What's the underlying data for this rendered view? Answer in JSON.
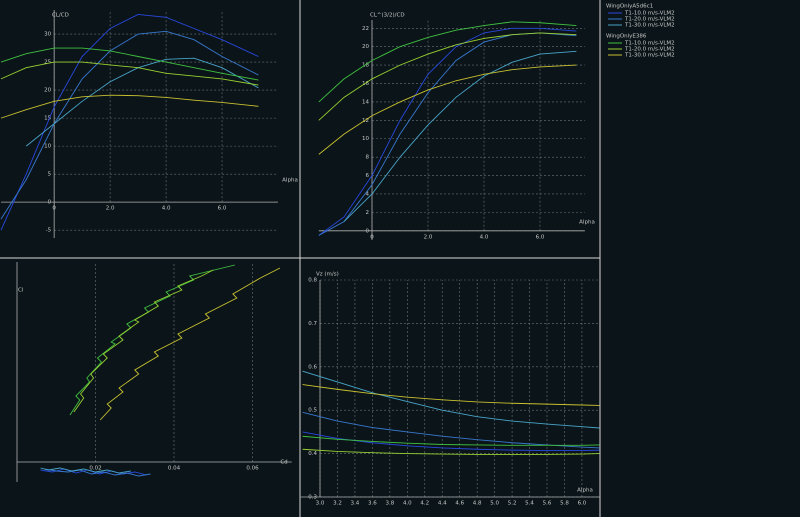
{
  "legend": {
    "groups": [
      {
        "title": "WingOnlyA5d6c1",
        "entries": [
          {
            "name": "T1-10.0 m/s-VLM2",
            "color": "#2848e0"
          },
          {
            "name": "T1-20.0 m/s-VLM2",
            "color": "#3878d0"
          },
          {
            "name": "T1-30.0 m/s-VLM2",
            "color": "#48a4c8"
          }
        ]
      },
      {
        "title": "WingOnlyE386",
        "entries": [
          {
            "name": "T1-10.0 m/s-VLM2",
            "color": "#40c040"
          },
          {
            "name": "T1-20.0 m/s-VLM2",
            "color": "#98d030"
          },
          {
            "name": "T1-30.0 m/s-VLM2",
            "color": "#c8c030"
          }
        ]
      }
    ]
  },
  "chart_data": [
    {
      "type": "line",
      "y_label": "CL/CD",
      "x_label": "Alpha",
      "x": [
        -1.9,
        -1,
        0,
        1,
        2,
        3,
        4,
        5,
        6,
        7.3
      ],
      "series": [
        {
          "values": [
            -5,
            5,
            17,
            26,
            31,
            33.5,
            33,
            31,
            29,
            26
          ]
        },
        {
          "values": [
            -3,
            4,
            14,
            22,
            27,
            30,
            30.5,
            29,
            26,
            22.7
          ]
        },
        {
          "values": [
            null,
            10,
            14,
            18,
            21.5,
            24,
            25.5,
            25.7,
            24,
            20.4
          ]
        },
        {
          "values": [
            25,
            26.5,
            27.5,
            27.5,
            27,
            26,
            25,
            24,
            23,
            21.8
          ]
        },
        {
          "values": [
            22,
            24,
            25,
            25,
            24.5,
            24,
            23,
            22.5,
            22,
            20.9
          ]
        },
        {
          "values": [
            15,
            16.5,
            18,
            18.8,
            19.1,
            19,
            18.7,
            18.2,
            17.8,
            17.1
          ]
        }
      ],
      "xlim": [
        -1.9,
        8
      ],
      "ylim": [
        -6.4,
        34.3
      ],
      "xticks": [
        0,
        {
          "value": 2,
          "label": "2.0"
        },
        {
          "value": 4,
          "label": "4.0"
        },
        {
          "value": 6,
          "label": "6.0"
        }
      ],
      "yticks": [
        -5,
        0,
        5,
        10,
        15,
        20,
        25,
        30
      ],
      "grid": true
    },
    {
      "type": "line",
      "y_label": "CL^(3/2)/CD",
      "x_label": "Alpha",
      "x": [
        -1.9,
        -1,
        0,
        1,
        2,
        3,
        4,
        5,
        6,
        7.3
      ],
      "series": [
        {
          "values": [
            -0.5,
            1.5,
            6,
            12,
            17,
            20,
            21.5,
            22,
            22,
            21.7
          ]
        },
        {
          "values": [
            -0.5,
            1,
            5,
            10.5,
            15,
            18.5,
            20.5,
            21.3,
            21.5,
            21.2
          ]
        },
        {
          "values": [
            null,
            1,
            4,
            8,
            11.5,
            14.5,
            16.8,
            18.3,
            19.2,
            19.5
          ]
        },
        {
          "values": [
            14,
            16.5,
            18.5,
            20,
            21,
            21.8,
            22.3,
            22.7,
            22.6,
            22.3
          ]
        },
        {
          "values": [
            12,
            14.5,
            16.5,
            18,
            19.2,
            20.2,
            20.9,
            21.3,
            21.5,
            21.3
          ]
        },
        {
          "values": [
            8.3,
            10.5,
            12.5,
            14,
            15.3,
            16.3,
            17,
            17.5,
            17.8,
            18
          ]
        }
      ],
      "xlim": [
        -1.9,
        7.6
      ],
      "ylim": [
        -1,
        22.9
      ],
      "xticks": [
        0,
        {
          "value": 2,
          "label": "2.0"
        },
        {
          "value": 4,
          "label": "4.0"
        },
        {
          "value": 6,
          "label": "6.0"
        }
      ],
      "yticks": [
        0,
        2,
        4,
        6,
        8,
        10,
        12,
        14,
        16,
        18,
        20,
        22
      ],
      "grid": true
    },
    {
      "type": "line",
      "y_label": "Cl",
      "x_label": "Cd",
      "series": [
        {
          "x": [
            0.006,
            0.009,
            0.012,
            0.015,
            0.018,
            0.021,
            0.024,
            0.027,
            0.03,
            0.033
          ],
          "values": [
            -0.04,
            -0.05,
            -0.035,
            -0.055,
            -0.04,
            -0.06,
            -0.045,
            -0.06,
            -0.05,
            -0.065
          ]
        },
        {
          "x": [
            0.007,
            0.01,
            0.013,
            0.016,
            0.019,
            0.022,
            0.025,
            0.028,
            0.031,
            0.034
          ],
          "values": [
            -0.035,
            -0.045,
            -0.05,
            -0.04,
            -0.06,
            -0.05,
            -0.065,
            -0.055,
            -0.07,
            -0.06
          ]
        },
        {
          "x": [
            0.006,
            0.008,
            0.011,
            0.014,
            0.017,
            0.02,
            0.023,
            0.026,
            0.029
          ],
          "values": [
            -0.03,
            -0.04,
            -0.03,
            -0.045,
            -0.035,
            -0.05,
            -0.04,
            -0.055,
            -0.045
          ]
        },
        {
          "x": [
            0.0135,
            0.016,
            0.015,
            0.0185,
            0.0178,
            0.0215,
            0.0205,
            0.025,
            0.024,
            0.029,
            0.028,
            0.0335,
            0.0325,
            0.039,
            0.038,
            0.045,
            0.044,
            0.0555
          ],
          "values": [
            0.235,
            0.31,
            0.33,
            0.4,
            0.42,
            0.5,
            0.52,
            0.59,
            0.6,
            0.67,
            0.69,
            0.75,
            0.77,
            0.83,
            0.85,
            0.91,
            0.93,
            0.985
          ]
        },
        {
          "x": [
            0.0145,
            0.017,
            0.0162,
            0.0195,
            0.0188,
            0.023,
            0.022,
            0.027,
            0.026,
            0.031,
            0.03,
            0.036,
            0.035,
            0.042,
            0.041,
            0.047,
            0.05
          ],
          "values": [
            0.25,
            0.32,
            0.34,
            0.42,
            0.44,
            0.52,
            0.54,
            0.61,
            0.63,
            0.7,
            0.71,
            0.78,
            0.8,
            0.86,
            0.88,
            0.93,
            0.96
          ]
        },
        {
          "x": [
            0.0212,
            0.024,
            0.023,
            0.027,
            0.026,
            0.031,
            0.03,
            0.036,
            0.035,
            0.042,
            0.041,
            0.049,
            0.048,
            0.056,
            0.055,
            0.062,
            0.067
          ],
          "values": [
            0.21,
            0.27,
            0.29,
            0.35,
            0.37,
            0.44,
            0.46,
            0.53,
            0.55,
            0.62,
            0.64,
            0.72,
            0.74,
            0.82,
            0.84,
            0.92,
            0.97
          ]
        }
      ],
      "xlim": [
        0,
        0.07
      ],
      "ylim": [
        -0.1,
        1.0
      ],
      "xticks": [
        0.02,
        0.04,
        0.06
      ],
      "grid": true
    },
    {
      "type": "line",
      "y_label": "Vz (m/s)",
      "x_label": "Alpha",
      "x": [
        2.8,
        3.2,
        3.6,
        4.0,
        4.4,
        4.8,
        5.2,
        5.6,
        6.0,
        6.2
      ],
      "series": [
        {
          "values": [
            0.45,
            0.435,
            0.425,
            0.418,
            0.413,
            0.41,
            0.408,
            0.407,
            0.407,
            0.408
          ]
        },
        {
          "values": [
            0.495,
            0.475,
            0.46,
            0.45,
            0.44,
            0.432,
            0.425,
            0.42,
            0.415,
            0.413
          ]
        },
        {
          "values": [
            0.59,
            0.565,
            0.54,
            0.52,
            0.5,
            0.485,
            0.475,
            0.468,
            0.462,
            0.459
          ]
        },
        {
          "values": [
            0.44,
            0.433,
            0.428,
            0.424,
            0.421,
            0.42,
            0.419,
            0.419,
            0.419,
            0.42
          ]
        },
        {
          "values": [
            0.41,
            0.405,
            0.402,
            0.4,
            0.399,
            0.398,
            0.398,
            0.398,
            0.399,
            0.4
          ]
        },
        {
          "values": [
            0.559,
            0.548,
            0.538,
            0.53,
            0.524,
            0.519,
            0.516,
            0.514,
            0.512,
            0.511
          ]
        }
      ],
      "xlim": [
        2.78,
        6.2
      ],
      "ylim": [
        0.3,
        0.8
      ],
      "xticks": [
        {
          "value": 3,
          "label": "3.0"
        },
        3.2,
        3.4,
        3.6,
        3.8,
        {
          "value": 4,
          "label": "4.0"
        },
        4.2,
        4.4,
        4.6,
        4.8,
        {
          "value": 5,
          "label": "5.0"
        },
        5.2,
        5.4,
        5.6,
        5.8,
        {
          "value": 6,
          "label": "6.0"
        }
      ],
      "yticks": [
        0.3,
        0.4,
        0.5,
        0.6,
        0.7,
        0.8
      ],
      "grid": true
    }
  ]
}
